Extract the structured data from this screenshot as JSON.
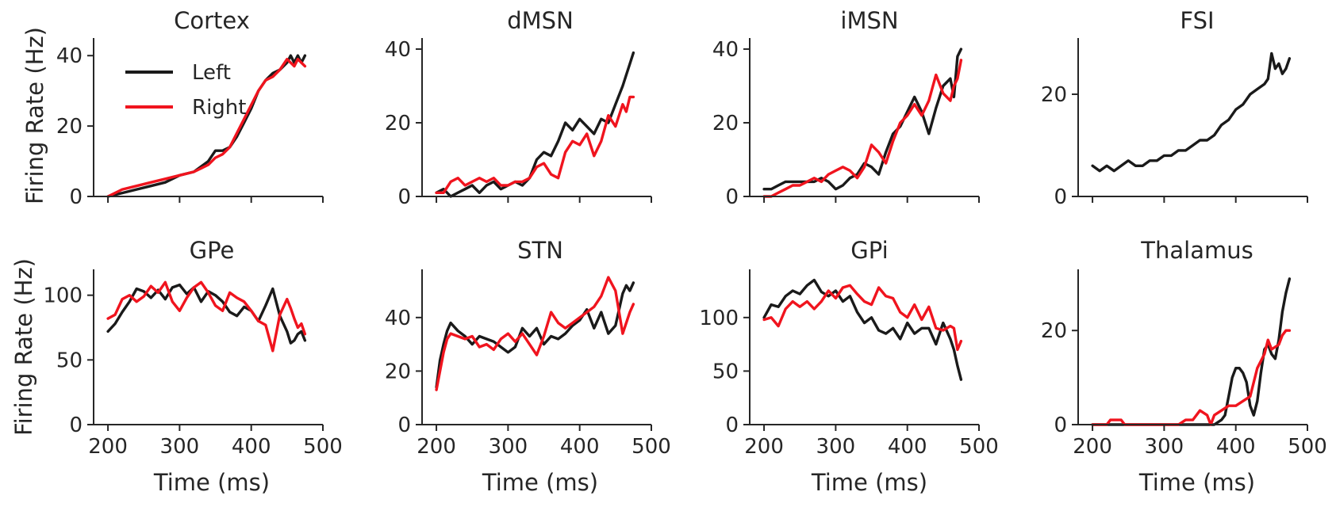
{
  "figure": {
    "ylabel": "Firing Rate (Hz)",
    "xlabel": "Time (ms)"
  },
  "legend": {
    "location": "upper-left of Cortex panel",
    "entries": [
      {
        "label": "Left",
        "color": "#1a1a1a"
      },
      {
        "label": "Right",
        "color": "#f0141e"
      }
    ]
  },
  "chart_data": [
    {
      "type": "line",
      "title": "Cortex",
      "xlim": [
        180,
        500
      ],
      "ylim": [
        0,
        45
      ],
      "xticks": [
        200,
        300,
        400,
        500
      ],
      "yticks": [
        0,
        20,
        40
      ],
      "show_xticklabels": false,
      "series": [
        {
          "name": "Left",
          "color": "#1a1a1a",
          "x": [
            200,
            220,
            240,
            260,
            280,
            300,
            320,
            340,
            350,
            360,
            370,
            380,
            390,
            400,
            410,
            420,
            430,
            440,
            450,
            455,
            460,
            465,
            470,
            475
          ],
          "y": [
            0,
            1,
            2,
            3,
            4,
            6,
            7,
            10,
            13,
            13,
            14,
            17,
            21,
            25,
            30,
            33,
            35,
            36,
            38,
            40,
            38,
            40,
            38,
            40
          ]
        },
        {
          "name": "Right",
          "color": "#f0141e",
          "x": [
            200,
            220,
            240,
            260,
            280,
            300,
            320,
            340,
            350,
            360,
            370,
            380,
            390,
            400,
            410,
            420,
            430,
            440,
            450,
            455,
            460,
            465,
            470,
            475
          ],
          "y": [
            0,
            2,
            3,
            4,
            5,
            6,
            7,
            9,
            11,
            12,
            14,
            18,
            22,
            26,
            30,
            33,
            34,
            36,
            39,
            38,
            37,
            39,
            38,
            37
          ]
        }
      ]
    },
    {
      "type": "line",
      "title": "dMSN",
      "xlim": [
        180,
        500
      ],
      "ylim": [
        0,
        43
      ],
      "xticks": [
        200,
        300,
        400,
        500
      ],
      "yticks": [
        0,
        20,
        40
      ],
      "show_xticklabels": false,
      "series": [
        {
          "name": "Left",
          "color": "#1a1a1a",
          "x": [
            200,
            210,
            220,
            230,
            240,
            250,
            260,
            270,
            280,
            290,
            300,
            310,
            320,
            330,
            340,
            350,
            360,
            370,
            380,
            390,
            400,
            410,
            420,
            430,
            440,
            450,
            460,
            465,
            470,
            475
          ],
          "y": [
            1,
            2,
            0,
            1,
            2,
            3,
            1,
            3,
            4,
            2,
            3,
            4,
            3,
            5,
            10,
            12,
            11,
            15,
            20,
            18,
            21,
            19,
            17,
            21,
            20,
            25,
            30,
            33,
            36,
            39
          ]
        },
        {
          "name": "Right",
          "color": "#f0141e",
          "x": [
            200,
            210,
            220,
            230,
            240,
            250,
            260,
            270,
            280,
            290,
            300,
            310,
            320,
            330,
            340,
            350,
            360,
            370,
            380,
            390,
            400,
            410,
            420,
            430,
            440,
            450,
            460,
            465,
            470,
            475
          ],
          "y": [
            1,
            1,
            4,
            5,
            3,
            4,
            5,
            4,
            5,
            3,
            3,
            4,
            4,
            5,
            8,
            9,
            6,
            5,
            12,
            15,
            14,
            17,
            11,
            15,
            22,
            19,
            25,
            23,
            27,
            27
          ]
        }
      ]
    },
    {
      "type": "line",
      "title": "iMSN",
      "xlim": [
        180,
        500
      ],
      "ylim": [
        0,
        43
      ],
      "xticks": [
        200,
        300,
        400,
        500
      ],
      "yticks": [
        0,
        20,
        40
      ],
      "show_xticklabels": false,
      "series": [
        {
          "name": "Left",
          "color": "#1a1a1a",
          "x": [
            200,
            210,
            220,
            230,
            240,
            250,
            260,
            270,
            280,
            290,
            300,
            310,
            320,
            330,
            340,
            350,
            360,
            370,
            380,
            390,
            400,
            410,
            420,
            430,
            440,
            450,
            460,
            465,
            470,
            475
          ],
          "y": [
            2,
            2,
            3,
            4,
            4,
            4,
            4,
            4,
            5,
            4,
            2,
            3,
            5,
            6,
            9,
            8,
            6,
            12,
            17,
            19,
            23,
            27,
            23,
            17,
            24,
            30,
            32,
            27,
            38,
            40
          ]
        },
        {
          "name": "Right",
          "color": "#f0141e",
          "x": [
            200,
            210,
            220,
            230,
            240,
            250,
            260,
            270,
            280,
            290,
            300,
            310,
            320,
            330,
            340,
            350,
            360,
            370,
            380,
            390,
            400,
            410,
            420,
            430,
            440,
            450,
            460,
            465,
            470,
            475
          ],
          "y": [
            0,
            0,
            1,
            2,
            3,
            3,
            4,
            5,
            4,
            6,
            7,
            8,
            7,
            5,
            8,
            14,
            12,
            9,
            15,
            20,
            22,
            25,
            22,
            26,
            33,
            28,
            26,
            30,
            32,
            37
          ]
        }
      ]
    },
    {
      "type": "line",
      "title": "FSI",
      "xlim": [
        180,
        500
      ],
      "ylim": [
        0,
        31
      ],
      "xticks": [
        200,
        300,
        400,
        500
      ],
      "yticks": [
        0,
        20
      ],
      "show_xticklabels": false,
      "series": [
        {
          "name": "Left",
          "color": "#1a1a1a",
          "x": [
            200,
            210,
            220,
            230,
            240,
            250,
            260,
            270,
            280,
            290,
            300,
            310,
            320,
            330,
            340,
            350,
            360,
            370,
            380,
            390,
            400,
            410,
            420,
            430,
            440,
            445,
            450,
            455,
            460,
            465,
            470,
            475
          ],
          "y": [
            6,
            5,
            6,
            5,
            6,
            7,
            6,
            6,
            7,
            7,
            8,
            8,
            9,
            9,
            10,
            11,
            11,
            12,
            14,
            15,
            17,
            18,
            20,
            21,
            22,
            23,
            28,
            25,
            26,
            24,
            25,
            27
          ]
        }
      ]
    },
    {
      "type": "line",
      "title": "GPe",
      "xlim": [
        180,
        500
      ],
      "ylim": [
        0,
        120
      ],
      "xticks": [
        200,
        300,
        400,
        500
      ],
      "yticks": [
        0,
        50,
        100
      ],
      "show_xticklabels": true,
      "series": [
        {
          "name": "Left",
          "color": "#1a1a1a",
          "x": [
            200,
            210,
            220,
            230,
            240,
            250,
            260,
            270,
            280,
            290,
            300,
            310,
            320,
            330,
            340,
            350,
            360,
            370,
            380,
            390,
            400,
            410,
            420,
            430,
            440,
            450,
            455,
            460,
            465,
            470,
            475
          ],
          "y": [
            72,
            78,
            87,
            95,
            105,
            103,
            98,
            104,
            97,
            106,
            108,
            101,
            106,
            95,
            103,
            100,
            95,
            87,
            84,
            91,
            88,
            80,
            92,
            105,
            84,
            72,
            63,
            65,
            70,
            72,
            65
          ]
        },
        {
          "name": "Right",
          "color": "#f0141e",
          "x": [
            200,
            210,
            220,
            230,
            240,
            250,
            260,
            270,
            280,
            290,
            300,
            310,
            320,
            330,
            340,
            350,
            360,
            370,
            380,
            390,
            400,
            410,
            420,
            430,
            440,
            450,
            455,
            460,
            465,
            470,
            475
          ],
          "y": [
            82,
            85,
            97,
            100,
            95,
            99,
            107,
            102,
            110,
            95,
            88,
            98,
            106,
            110,
            102,
            92,
            88,
            102,
            98,
            95,
            88,
            80,
            77,
            57,
            85,
            97,
            90,
            82,
            75,
            78,
            70
          ]
        }
      ]
    },
    {
      "type": "line",
      "title": "STN",
      "xlim": [
        180,
        500
      ],
      "ylim": [
        0,
        58
      ],
      "xticks": [
        200,
        300,
        400,
        500
      ],
      "yticks": [
        0,
        20,
        40
      ],
      "show_xticklabels": true,
      "series": [
        {
          "name": "Left",
          "color": "#1a1a1a",
          "x": [
            200,
            205,
            210,
            215,
            220,
            230,
            240,
            250,
            260,
            270,
            280,
            290,
            300,
            310,
            320,
            330,
            340,
            350,
            360,
            370,
            380,
            390,
            400,
            410,
            420,
            430,
            440,
            450,
            460,
            465,
            470,
            475
          ],
          "y": [
            14,
            24,
            30,
            35,
            38,
            35,
            33,
            30,
            33,
            32,
            31,
            29,
            27,
            29,
            36,
            33,
            36,
            30,
            33,
            32,
            34,
            37,
            39,
            43,
            36,
            42,
            34,
            37,
            49,
            52,
            50,
            53
          ]
        },
        {
          "name": "Right",
          "color": "#f0141e",
          "x": [
            200,
            205,
            210,
            215,
            220,
            230,
            240,
            250,
            260,
            270,
            280,
            290,
            300,
            310,
            320,
            330,
            340,
            350,
            360,
            370,
            380,
            390,
            400,
            410,
            420,
            430,
            440,
            450,
            460,
            465,
            470,
            475
          ],
          "y": [
            13,
            20,
            27,
            32,
            34,
            33,
            32,
            33,
            29,
            30,
            28,
            32,
            34,
            31,
            34,
            30,
            26,
            33,
            42,
            38,
            36,
            38,
            40,
            42,
            44,
            48,
            55,
            50,
            34,
            38,
            42,
            45
          ]
        }
      ]
    },
    {
      "type": "line",
      "title": "GPi",
      "xlim": [
        180,
        500
      ],
      "ylim": [
        0,
        145
      ],
      "xticks": [
        200,
        300,
        400,
        500
      ],
      "yticks": [
        0,
        50,
        100
      ],
      "show_xticklabels": true,
      "series": [
        {
          "name": "Left",
          "color": "#1a1a1a",
          "x": [
            200,
            210,
            220,
            230,
            240,
            250,
            260,
            270,
            280,
            290,
            300,
            310,
            320,
            330,
            340,
            350,
            360,
            370,
            380,
            390,
            400,
            410,
            420,
            430,
            440,
            450,
            460,
            465,
            470,
            475
          ],
          "y": [
            100,
            112,
            110,
            120,
            125,
            122,
            130,
            135,
            124,
            120,
            125,
            115,
            120,
            105,
            95,
            100,
            88,
            85,
            90,
            80,
            95,
            85,
            90,
            90,
            75,
            95,
            80,
            70,
            55,
            42
          ]
        },
        {
          "name": "Right",
          "color": "#f0141e",
          "x": [
            200,
            210,
            220,
            230,
            240,
            250,
            260,
            270,
            280,
            290,
            300,
            310,
            320,
            330,
            340,
            350,
            360,
            370,
            380,
            390,
            400,
            410,
            420,
            430,
            440,
            450,
            460,
            465,
            470,
            475
          ],
          "y": [
            98,
            100,
            92,
            108,
            115,
            110,
            115,
            108,
            115,
            125,
            118,
            128,
            130,
            122,
            115,
            112,
            128,
            120,
            118,
            105,
            100,
            112,
            98,
            110,
            90,
            88,
            92,
            90,
            70,
            78
          ]
        }
      ]
    },
    {
      "type": "line",
      "title": "Thalamus",
      "xlim": [
        180,
        500
      ],
      "ylim": [
        0,
        33
      ],
      "xticks": [
        200,
        300,
        400,
        500
      ],
      "yticks": [
        0,
        20
      ],
      "show_xticklabels": true,
      "series": [
        {
          "name": "Left",
          "color": "#1a1a1a",
          "x": [
            200,
            250,
            300,
            330,
            350,
            360,
            370,
            380,
            385,
            390,
            395,
            400,
            405,
            410,
            415,
            420,
            425,
            430,
            435,
            440,
            445,
            450,
            455,
            460,
            465,
            470,
            475
          ],
          "y": [
            0,
            0,
            0,
            0,
            0,
            0,
            0,
            1,
            2,
            6,
            10,
            12,
            12,
            11,
            9,
            4,
            2,
            5,
            11,
            16,
            17,
            15,
            14,
            18,
            24,
            28,
            31
          ]
        },
        {
          "name": "Right",
          "color": "#f0141e",
          "x": [
            200,
            220,
            225,
            240,
            245,
            300,
            320,
            330,
            340,
            350,
            360,
            365,
            370,
            380,
            390,
            400,
            410,
            420,
            430,
            440,
            445,
            450,
            460,
            465,
            470,
            475
          ],
          "y": [
            0,
            0,
            1,
            1,
            0,
            0,
            0,
            1,
            1,
            3,
            2,
            0,
            2,
            3,
            4,
            4,
            5,
            6,
            12,
            15,
            18,
            16,
            17,
            19,
            20,
            20
          ]
        }
      ]
    }
  ]
}
